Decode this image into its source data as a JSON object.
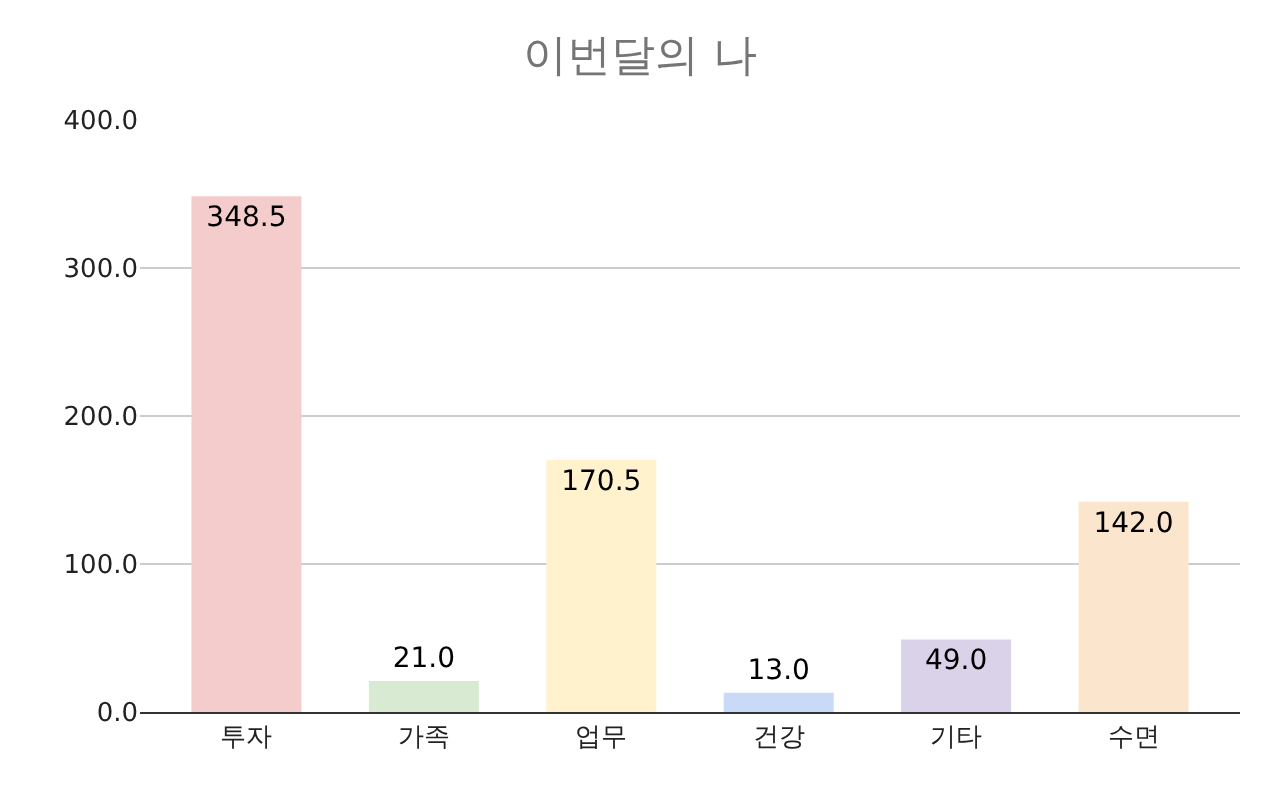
{
  "chart_data": {
    "type": "bar",
    "title": "이번달의 나",
    "categories": [
      "투자",
      "가족",
      "업무",
      "건강",
      "기타",
      "수면"
    ],
    "values": [
      348.5,
      21.0,
      170.5,
      13.0,
      49.0,
      142.0
    ],
    "colors": [
      "#f4cccc",
      "#d9ead3",
      "#fff2cc",
      "#c9daf8",
      "#d9d2e9",
      "#fce5cd"
    ],
    "value_labels": [
      "348.5",
      "21.0",
      "170.5",
      "13.0",
      "49.0",
      "142.0"
    ],
    "ylim": [
      0,
      400
    ],
    "yticks": [
      {
        "value": 0,
        "label": "0.0"
      },
      {
        "value": 100,
        "label": "100.0"
      },
      {
        "value": 200,
        "label": "200.0"
      },
      {
        "value": 300,
        "label": "300.0"
      },
      {
        "value": 400,
        "label": "400.0"
      }
    ],
    "grid": "y",
    "legend": false
  }
}
